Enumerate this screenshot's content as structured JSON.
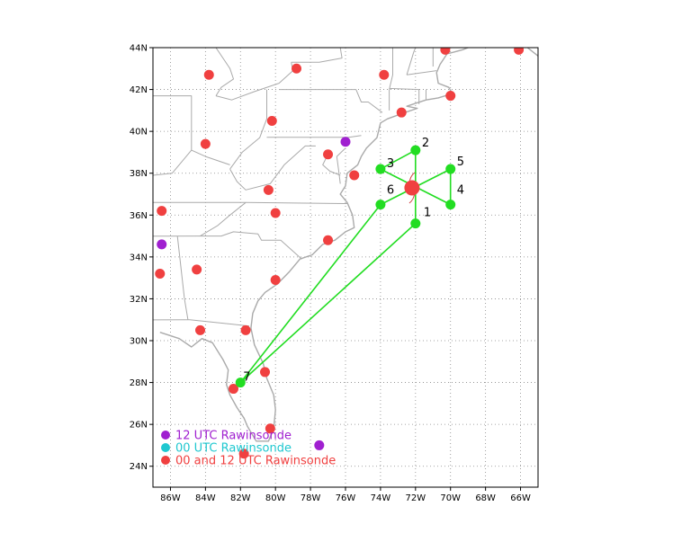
{
  "map": {
    "extent": {
      "lon_min": -87,
      "lon_max": -65,
      "lat_min": 23,
      "lat_max": 44
    },
    "grid": true,
    "x_ticks": [
      {
        "lon": -86,
        "label": "86W"
      },
      {
        "lon": -84,
        "label": "84W"
      },
      {
        "lon": -82,
        "label": "82W"
      },
      {
        "lon": -80,
        "label": "80W"
      },
      {
        "lon": -78,
        "label": "78W"
      },
      {
        "lon": -76,
        "label": "76W"
      },
      {
        "lon": -74,
        "label": "74W"
      },
      {
        "lon": -72,
        "label": "72W"
      },
      {
        "lon": -70,
        "label": "70W"
      },
      {
        "lon": -68,
        "label": "68W"
      },
      {
        "lon": -66,
        "label": "66W"
      }
    ],
    "y_ticks": [
      {
        "lat": 24,
        "label": "24N"
      },
      {
        "lat": 26,
        "label": "26N"
      },
      {
        "lat": 28,
        "label": "28N"
      },
      {
        "lat": 30,
        "label": "30N"
      },
      {
        "lat": 32,
        "label": "32N"
      },
      {
        "lat": 34,
        "label": "34N"
      },
      {
        "lat": 36,
        "label": "36N"
      },
      {
        "lat": 38,
        "label": "38N"
      },
      {
        "lat": 40,
        "label": "40N"
      },
      {
        "lat": 42,
        "label": "42N"
      },
      {
        "lat": 44,
        "label": "44N"
      }
    ]
  },
  "colors": {
    "track": "#22dd22",
    "c00and12": "#f04040",
    "c12": "#a020d0",
    "c00": "#20c8d0",
    "coast": "#aaaaaa",
    "grid": "#888888",
    "storm_arc": "#d04040"
  },
  "waypoints": [
    {
      "id": "1",
      "label": "1",
      "lon": -72.0,
      "lat": 35.6
    },
    {
      "id": "2",
      "label": "2",
      "lon": -72.0,
      "lat": 39.1
    },
    {
      "id": "3",
      "label": "3",
      "lon": -74.0,
      "lat": 38.2
    },
    {
      "id": "4",
      "label": "4",
      "lon": -70.0,
      "lat": 36.5
    },
    {
      "id": "5",
      "label": "5",
      "lon": -70.0,
      "lat": 38.2
    },
    {
      "id": "6",
      "label": "6",
      "lon": -74.0,
      "lat": 36.5
    },
    {
      "id": "7",
      "label": "7",
      "lon": -82.0,
      "lat": 28.0
    }
  ],
  "track": [
    [
      -82.0,
      28.0
    ],
    [
      -72.0,
      35.6
    ],
    [
      -72.0,
      39.1
    ],
    [
      -74.0,
      38.2
    ],
    [
      -70.0,
      36.5
    ],
    [
      -70.0,
      38.2
    ],
    [
      -74.0,
      36.5
    ],
    [
      -82.0,
      28.0
    ]
  ],
  "storm_center": {
    "lon": -72.2,
    "lat": 37.3
  },
  "stations": [
    {
      "type": "both",
      "lon": -70.3,
      "lat": 43.9
    },
    {
      "type": "both",
      "lon": -66.1,
      "lat": 43.9
    },
    {
      "type": "both",
      "lon": -83.8,
      "lat": 42.7
    },
    {
      "type": "both",
      "lon": -78.8,
      "lat": 43.0
    },
    {
      "type": "both",
      "lon": -73.8,
      "lat": 42.7
    },
    {
      "type": "both",
      "lon": -70.0,
      "lat": 41.7
    },
    {
      "type": "both",
      "lon": -72.8,
      "lat": 40.9
    },
    {
      "type": "both",
      "lon": -80.2,
      "lat": 40.5
    },
    {
      "type": "both",
      "lon": -84.0,
      "lat": 39.4
    },
    {
      "type": "both",
      "lon": -77.0,
      "lat": 38.9
    },
    {
      "type": "both",
      "lon": -75.5,
      "lat": 37.9
    },
    {
      "type": "both",
      "lon": -80.4,
      "lat": 37.2
    },
    {
      "type": "both",
      "lon": -80.0,
      "lat": 36.1
    },
    {
      "type": "both",
      "lon": -86.5,
      "lat": 36.2
    },
    {
      "type": "both",
      "lon": -77.0,
      "lat": 34.8
    },
    {
      "type": "both",
      "lon": -84.5,
      "lat": 33.4
    },
    {
      "type": "both",
      "lon": -86.6,
      "lat": 33.2
    },
    {
      "type": "both",
      "lon": -80.0,
      "lat": 32.9
    },
    {
      "type": "both",
      "lon": -84.3,
      "lat": 30.5
    },
    {
      "type": "both",
      "lon": -81.7,
      "lat": 30.5
    },
    {
      "type": "both",
      "lon": -80.6,
      "lat": 28.5
    },
    {
      "type": "both",
      "lon": -82.4,
      "lat": 27.7
    },
    {
      "type": "both",
      "lon": -80.3,
      "lat": 25.8
    },
    {
      "type": "both",
      "lon": -81.8,
      "lat": 24.6
    },
    {
      "type": "12",
      "lon": -76.0,
      "lat": 39.5
    },
    {
      "type": "12",
      "lon": -86.5,
      "lat": 34.6
    },
    {
      "type": "12",
      "lon": -77.5,
      "lat": 25.0
    }
  ],
  "legend": [
    {
      "key": "12",
      "label": "12 UTC Rawinsonde"
    },
    {
      "key": "00",
      "label": "00 UTC Rawinsonde"
    },
    {
      "key": "both",
      "label": "00 and 12 UTC Rawinsonde"
    }
  ],
  "coastlines": [
    [
      [
        -86.6,
        30.4
      ],
      [
        -85.5,
        30.1
      ],
      [
        -84.8,
        29.7
      ],
      [
        -84.2,
        30.1
      ],
      [
        -83.6,
        29.9
      ],
      [
        -83.0,
        29.1
      ],
      [
        -82.7,
        28.6
      ],
      [
        -82.8,
        27.9
      ],
      [
        -82.6,
        27.4
      ],
      [
        -82.2,
        26.8
      ],
      [
        -81.8,
        26.3
      ],
      [
        -81.6,
        25.9
      ],
      [
        -81.1,
        25.2
      ],
      [
        -80.4,
        25.2
      ],
      [
        -80.1,
        25.8
      ],
      [
        -80.0,
        26.7
      ],
      [
        -80.1,
        27.4
      ],
      [
        -80.5,
        28.2
      ],
      [
        -80.7,
        28.9
      ],
      [
        -81.2,
        29.8
      ],
      [
        -81.4,
        30.6
      ],
      [
        -81.3,
        31.3
      ],
      [
        -81.0,
        31.9
      ],
      [
        -80.6,
        32.3
      ],
      [
        -79.9,
        32.7
      ],
      [
        -79.2,
        33.3
      ],
      [
        -78.6,
        33.9
      ],
      [
        -77.9,
        34.1
      ],
      [
        -77.3,
        34.6
      ],
      [
        -76.6,
        34.8
      ],
      [
        -76.0,
        35.2
      ],
      [
        -75.5,
        35.4
      ],
      [
        -75.6,
        36.0
      ],
      [
        -75.9,
        36.6
      ],
      [
        -76.3,
        37.0
      ],
      [
        -76.0,
        37.4
      ],
      [
        -75.9,
        38.0
      ],
      [
        -75.3,
        38.4
      ],
      [
        -75.1,
        38.8
      ],
      [
        -74.8,
        39.2
      ],
      [
        -74.2,
        39.7
      ],
      [
        -74.0,
        40.4
      ],
      [
        -73.6,
        40.6
      ],
      [
        -72.6,
        40.9
      ],
      [
        -71.9,
        41.1
      ],
      [
        -72.5,
        41.2
      ],
      [
        -71.4,
        41.5
      ],
      [
        -70.7,
        41.6
      ],
      [
        -69.9,
        41.8
      ],
      [
        -70.1,
        42.1
      ],
      [
        -70.7,
        42.3
      ],
      [
        -70.8,
        42.8
      ],
      [
        -70.6,
        43.2
      ],
      [
        -70.2,
        43.7
      ],
      [
        -69.3,
        43.9
      ],
      [
        -68.4,
        44.2
      ],
      [
        -67.6,
        44.5
      ]
    ],
    [
      [
        -66.8,
        44.8
      ],
      [
        -66.1,
        44.6
      ],
      [
        -65.6,
        44.0
      ],
      [
        -65.0,
        43.6
      ]
    ]
  ],
  "borders": [
    [
      [
        -87.0,
        30.99
      ],
      [
        -85.0,
        31.0
      ],
      [
        -84.9,
        31.0
      ],
      [
        -81.5,
        30.7
      ]
    ],
    [
      [
        -85.0,
        31.0
      ],
      [
        -85.2,
        32.0
      ],
      [
        -85.6,
        34.99
      ]
    ],
    [
      [
        -87.0,
        34.99
      ],
      [
        -84.3,
        35.0
      ],
      [
        -83.1,
        35.0
      ],
      [
        -82.4,
        35.2
      ],
      [
        -81.0,
        35.1
      ],
      [
        -80.8,
        34.8
      ],
      [
        -79.7,
        34.8
      ],
      [
        -78.5,
        33.9
      ]
    ],
    [
      [
        -84.3,
        35.0
      ],
      [
        -83.3,
        35.5
      ],
      [
        -82.6,
        36.0
      ],
      [
        -81.7,
        36.6
      ]
    ],
    [
      [
        -87.0,
        36.6
      ],
      [
        -83.7,
        36.6
      ],
      [
        -81.7,
        36.6
      ],
      [
        -75.9,
        36.55
      ]
    ],
    [
      [
        -82.6,
        38.2
      ],
      [
        -82.2,
        37.6
      ],
      [
        -81.7,
        37.2
      ],
      [
        -80.3,
        37.5
      ],
      [
        -79.5,
        38.4
      ],
      [
        -78.3,
        39.3
      ],
      [
        -77.7,
        39.3
      ]
    ],
    [
      [
        -82.6,
        38.2
      ],
      [
        -81.9,
        39.0
      ],
      [
        -80.9,
        39.7
      ],
      [
        -80.5,
        40.6
      ],
      [
        -80.5,
        42.0
      ]
    ],
    [
      [
        -80.5,
        39.72
      ],
      [
        -75.8,
        39.72
      ],
      [
        -75.1,
        39.8
      ]
    ],
    [
      [
        -79.8,
        42.0
      ],
      [
        -75.4,
        42.0
      ],
      [
        -75.1,
        41.4
      ],
      [
        -74.7,
        41.4
      ],
      [
        -73.9,
        40.9
      ]
    ],
    [
      [
        -73.5,
        41.0
      ],
      [
        -73.5,
        42.0
      ],
      [
        -73.3,
        42.7
      ],
      [
        -73.3,
        45.0
      ]
    ],
    [
      [
        -71.8,
        41.3
      ],
      [
        -71.8,
        42.0
      ],
      [
        -73.5,
        42.05
      ]
    ],
    [
      [
        -71.4,
        41.5
      ],
      [
        -71.4,
        42.0
      ]
    ],
    [
      [
        -72.5,
        42.7
      ],
      [
        -70.8,
        42.9
      ]
    ],
    [
      [
        -72.5,
        42.7
      ],
      [
        -72.1,
        43.8
      ],
      [
        -71.5,
        45.0
      ]
    ],
    [
      [
        -71.0,
        43.1
      ],
      [
        -71.0,
        45.0
      ]
    ],
    [
      [
        -87.0,
        42.5
      ],
      [
        -87.0,
        41.7
      ],
      [
        -84.8,
        41.7
      ],
      [
        -84.8,
        39.1
      ],
      [
        -84.0,
        38.8
      ],
      [
        -82.6,
        38.4
      ]
    ],
    [
      [
        -83.4,
        41.7
      ],
      [
        -82.5,
        41.5
      ],
      [
        -81.2,
        41.9
      ],
      [
        -79.8,
        42.3
      ],
      [
        -79.0,
        42.9
      ],
      [
        -79.1,
        43.3
      ]
    ],
    [
      [
        -79.1,
        43.3
      ],
      [
        -77.5,
        43.3
      ],
      [
        -76.2,
        43.5
      ],
      [
        -76.3,
        44.0
      ],
      [
        -75.3,
        44.8
      ],
      [
        -74.7,
        45.0
      ]
    ],
    [
      [
        -83.5,
        45.0
      ],
      [
        -83.4,
        44.0
      ],
      [
        -82.6,
        43.0
      ],
      [
        -82.4,
        42.5
      ],
      [
        -83.1,
        42.1
      ],
      [
        -83.4,
        41.7
      ]
    ],
    [
      [
        -84.8,
        39.1
      ],
      [
        -85.9,
        38.0
      ],
      [
        -87.0,
        37.9
      ]
    ],
    [
      [
        -76.0,
        39.2
      ],
      [
        -76.5,
        38.8
      ],
      [
        -76.4,
        38.2
      ],
      [
        -76.3,
        37.5
      ]
    ],
    [
      [
        -77.0,
        38.9
      ],
      [
        -77.3,
        38.4
      ],
      [
        -76.9,
        38.1
      ],
      [
        -76.3,
        37.9
      ]
    ]
  ]
}
